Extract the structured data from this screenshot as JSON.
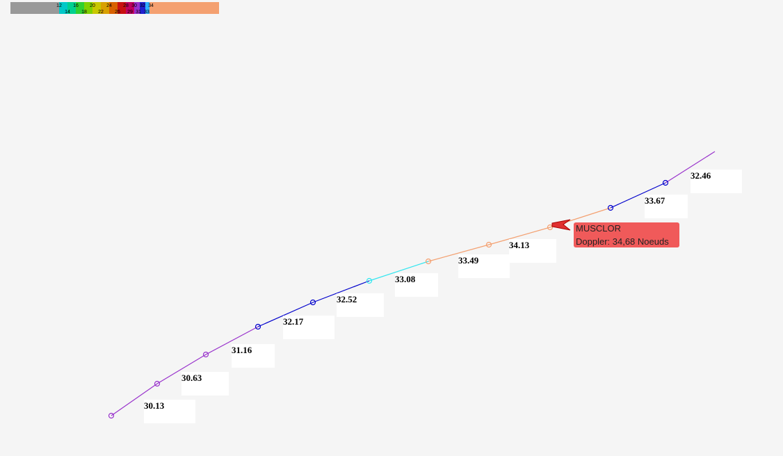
{
  "legend": {
    "top_labels": [
      12,
      16,
      20,
      24,
      28,
      30,
      32,
      34
    ],
    "bottom_labels": [
      14,
      18,
      22,
      26,
      29,
      31,
      33
    ]
  },
  "track": {
    "speed_labels": [
      30.13,
      30.63,
      31.16,
      32.17,
      32.52,
      33.08,
      33.49,
      34.13,
      33.67,
      32.46
    ]
  },
  "tooltip": {
    "name": "MUSCLOR",
    "detail": "Doppler: 34,68 Noeuds"
  }
}
